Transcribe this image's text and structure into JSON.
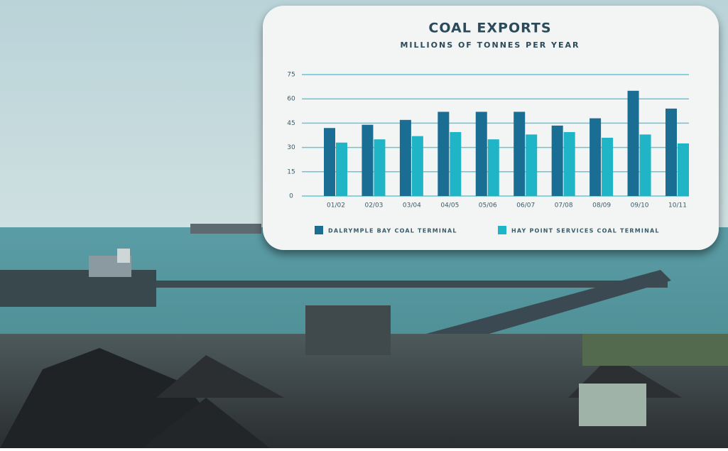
{
  "chart_data": {
    "type": "bar",
    "title": "COAL EXPORTS",
    "subtitle": "MILLIONS OF TONNES PER YEAR",
    "categories": [
      "01/02",
      "02/03",
      "03/04",
      "04/05",
      "05/06",
      "06/07",
      "07/08",
      "08/09",
      "09/10",
      "10/11"
    ],
    "series": [
      {
        "name": "DALRYMPLE BAY COAL TERMINAL",
        "color": "#1a6e93",
        "values": [
          42,
          44,
          47,
          52,
          52,
          52,
          43.5,
          48,
          65,
          54
        ]
      },
      {
        "name": "HAY POINT SERVICES COAL TERMINAL",
        "color": "#1fb4c6",
        "values": [
          33,
          35,
          37,
          39.5,
          35,
          38,
          39.5,
          36,
          38,
          32.5
        ]
      }
    ],
    "ylim": [
      0,
      75
    ],
    "yticks": [
      0,
      15,
      30,
      45,
      60,
      75
    ],
    "grid": true,
    "legend": "bottom"
  }
}
